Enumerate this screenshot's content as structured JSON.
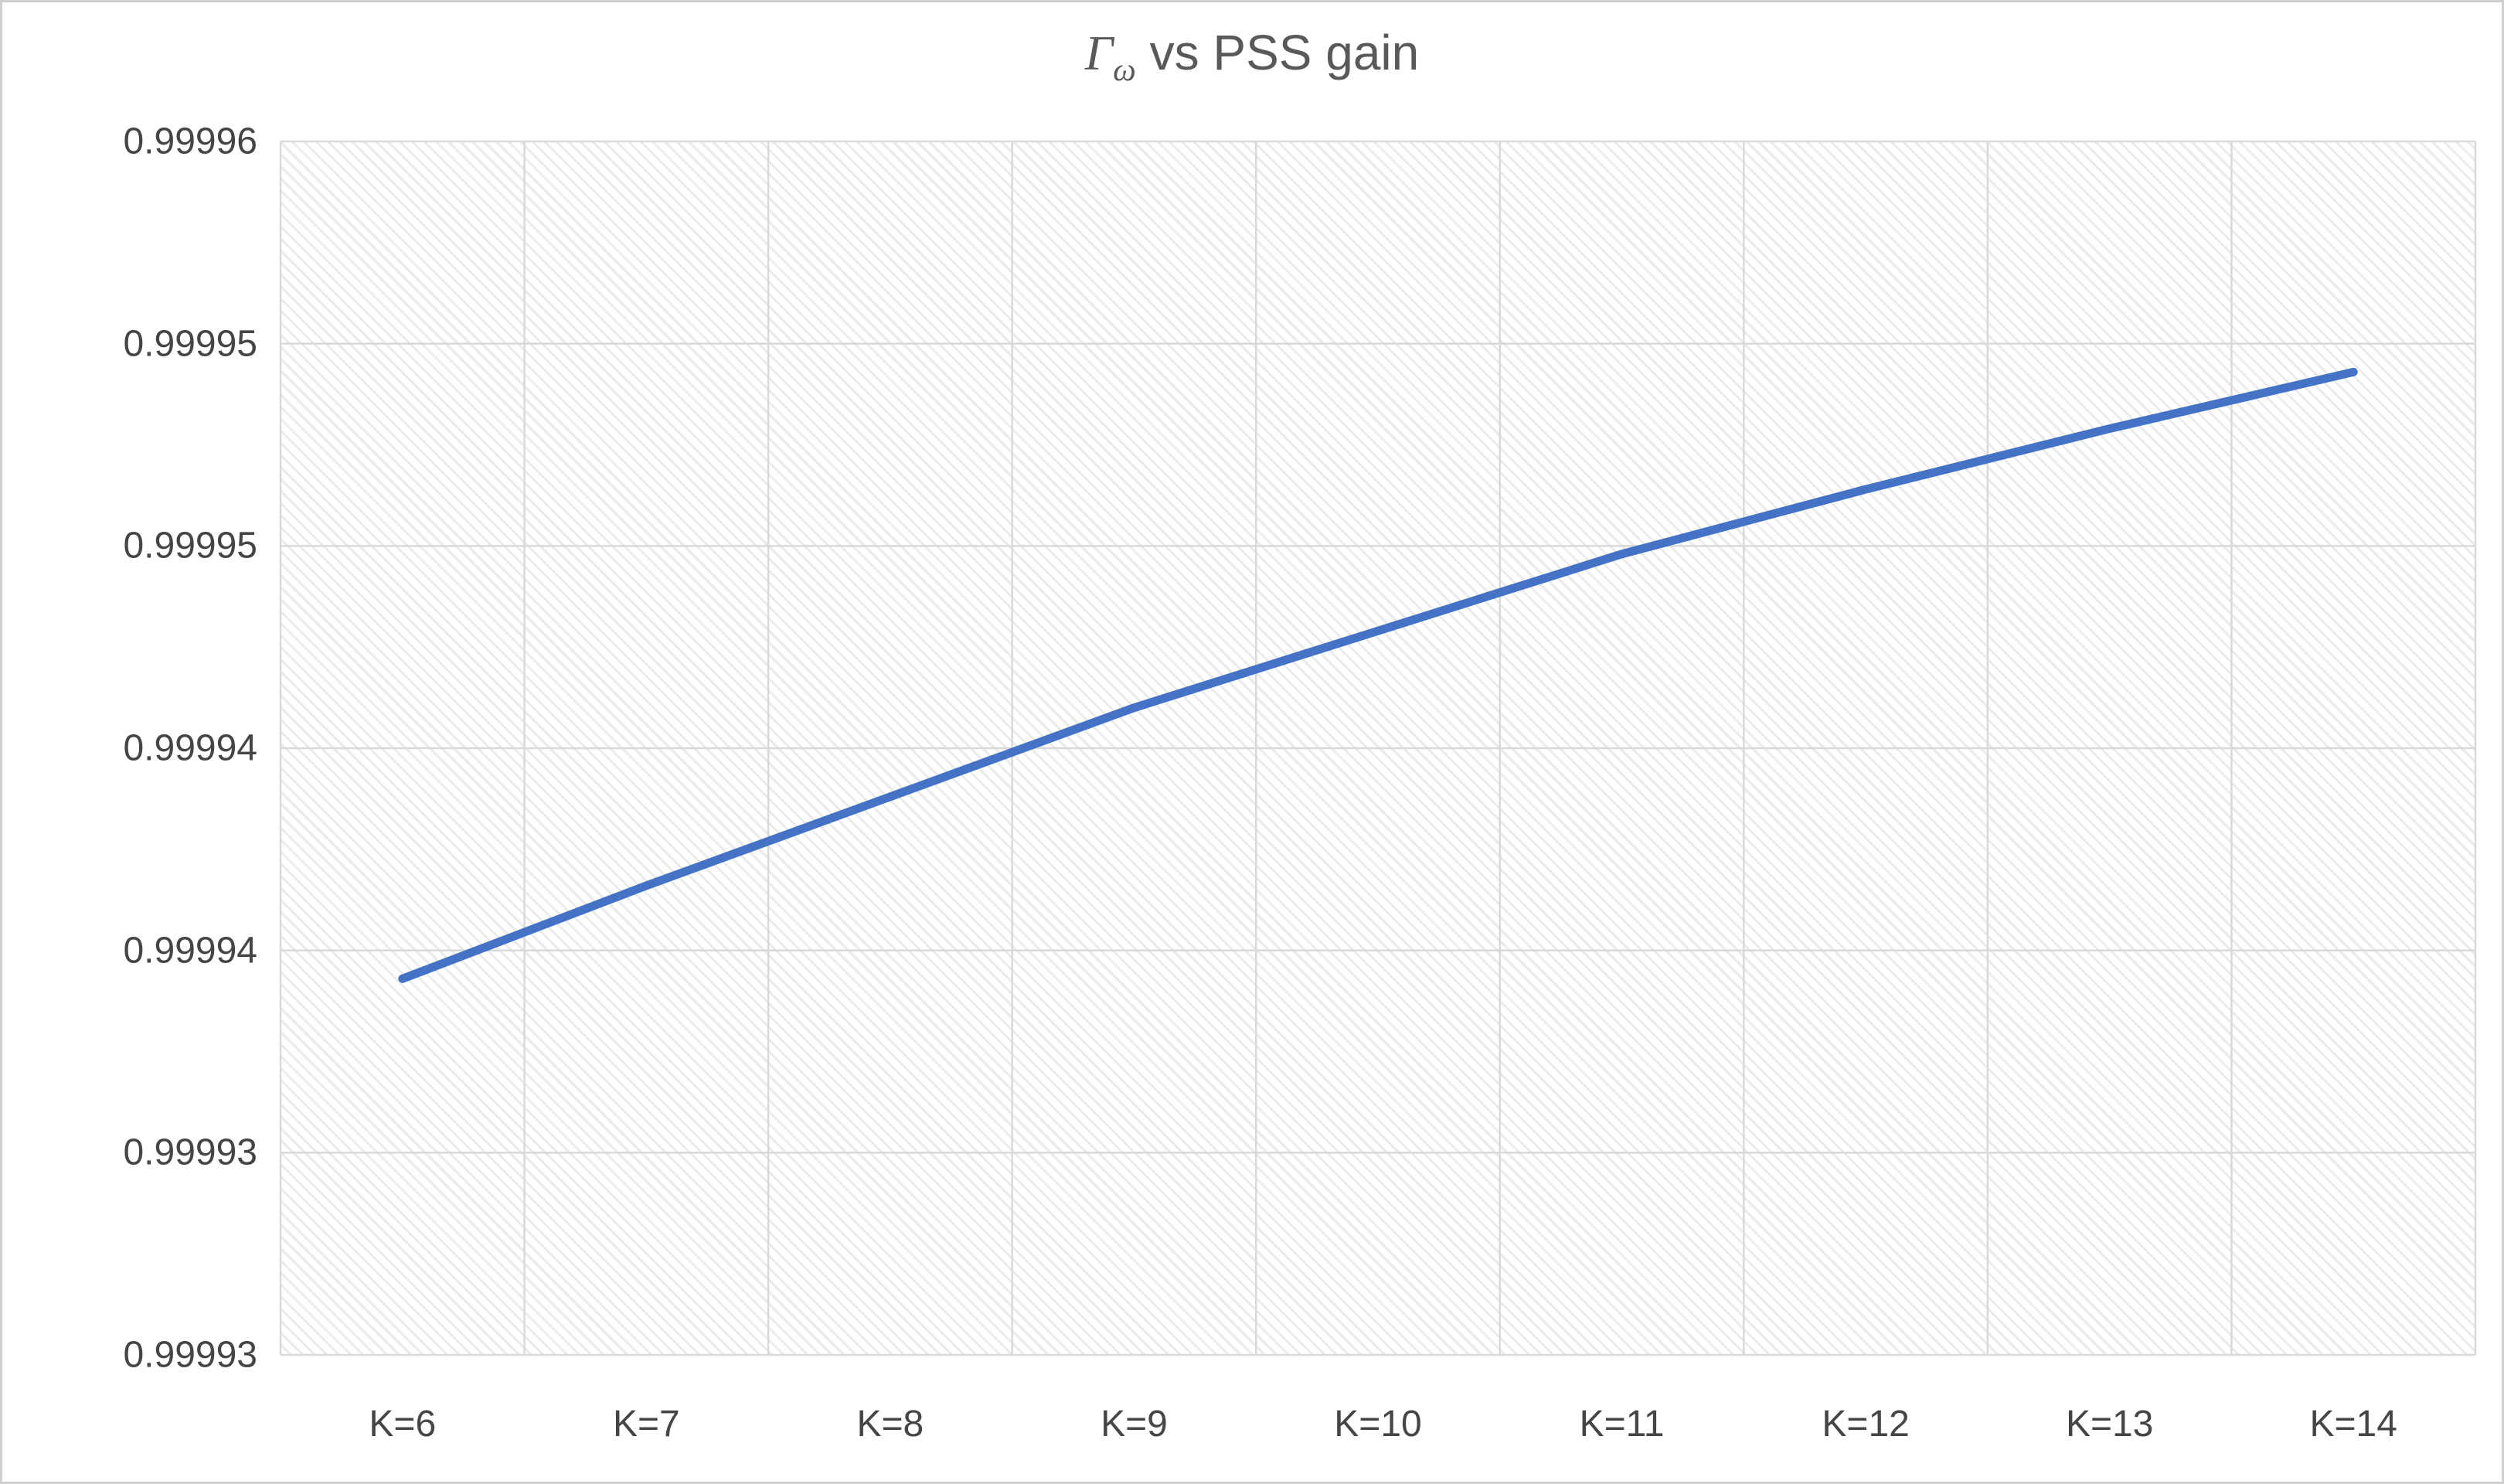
{
  "chart_data": {
    "type": "line",
    "title": "Γω vs PSS gain",
    "title_parts": {
      "gamma": "Γ",
      "sub": "ω",
      "rest": " vs PSS gain"
    },
    "categories": [
      "K=6",
      "K=7",
      "K=8",
      "K=9",
      "K=10",
      "K=11",
      "K=12",
      "K=13",
      "K=14"
    ],
    "values": [
      0.9999393,
      0.9999416,
      0.9999438,
      0.999946,
      0.9999479,
      0.9999498,
      0.9999514,
      0.9999529,
      0.9999543
    ],
    "xlabel": "",
    "ylabel": "",
    "ylim": [
      0.99993,
      0.99996
    ],
    "y_tick_values": [
      0.99996,
      0.999955,
      0.99995,
      0.999945,
      0.99994,
      0.999935,
      0.99993
    ],
    "y_ticks_display": [
      "0.99996",
      "0.99995",
      "0.99995",
      "0.99994",
      "0.99994",
      "0.99993",
      "0.99993"
    ],
    "grid": true,
    "legend": "none",
    "line_color": "#4472C4",
    "gridline_color": "#d9d9d9",
    "plot_hatch": "light-diagonal-stripe"
  }
}
